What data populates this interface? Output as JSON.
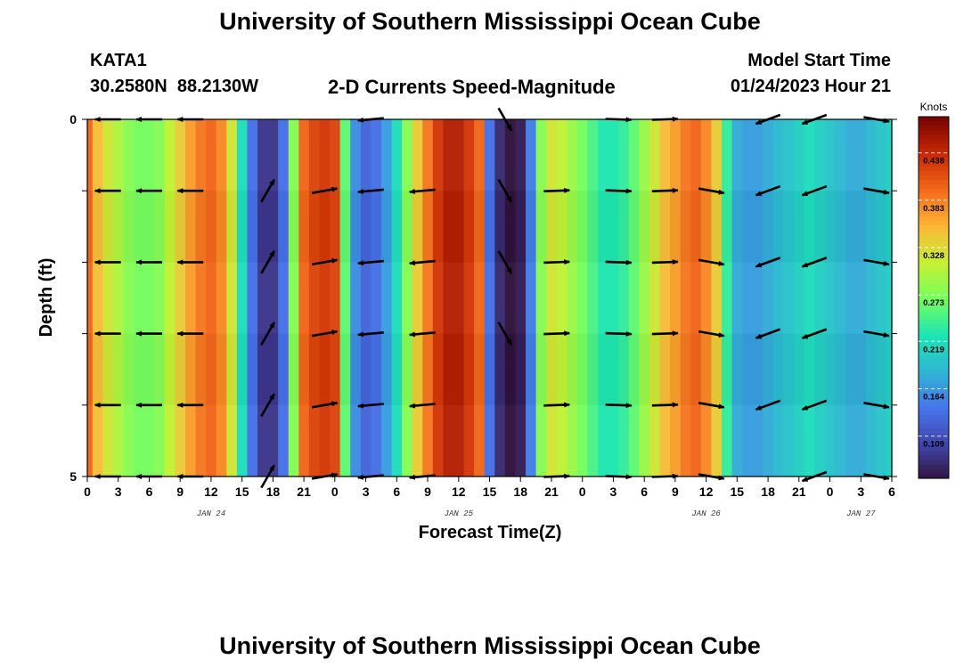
{
  "header": {
    "title": "University of Southern Mississippi Ocean Cube",
    "station": "KATA1",
    "coords": "30.2580N  88.2130W",
    "plot_title": "2-D Currents Speed-Magnitude",
    "model_start_label": "Model Start Time",
    "model_start_value": "01/24/2023 Hour 21"
  },
  "footer": {
    "title": "University of Southern Mississippi Ocean Cube"
  },
  "chart_data": {
    "type": "heatmap",
    "title": "2-D Currents Speed-Magnitude",
    "xlabel": "Forecast Time(Z)",
    "ylabel": "Depth (ft)",
    "x_range_hours": [
      0,
      78
    ],
    "y_range_ft": [
      0,
      5
    ],
    "y_tick_labels": [
      "0",
      "5"
    ],
    "x_tick_labels": [
      "0",
      "3",
      "6",
      "9",
      "12",
      "15",
      "18",
      "21",
      "0",
      "3",
      "6",
      "9",
      "12",
      "15",
      "18",
      "21",
      "0",
      "3",
      "6",
      "9",
      "12",
      "15",
      "18",
      "21",
      "0",
      "3",
      "6"
    ],
    "date_labels": [
      {
        "label": "JAN 24",
        "hour": 12
      },
      {
        "label": "JAN 25",
        "hour": 36
      },
      {
        "label": "JAN 26",
        "hour": 60
      },
      {
        "label": "JAN 27",
        "hour": 75
      }
    ],
    "colorbar": {
      "title": "Knots",
      "min": 0.06,
      "max": 0.48,
      "ticks": [
        "0.438",
        "0.383",
        "0.328",
        "0.273",
        "0.219",
        "0.164",
        "0.109"
      ],
      "tick_values": [
        0.438,
        0.383,
        0.328,
        0.273,
        0.219,
        0.164,
        0.109
      ]
    },
    "speed_profile": {
      "hours": [
        0,
        1,
        2,
        3,
        4,
        5,
        6,
        7,
        8,
        9,
        10,
        11,
        12,
        13,
        14,
        15,
        16,
        17,
        18,
        19,
        20,
        21,
        22,
        23,
        24,
        25,
        26,
        27,
        28,
        29,
        30,
        31,
        32,
        33,
        34,
        35,
        36,
        37,
        38,
        39,
        40,
        41,
        42,
        43,
        44,
        45,
        46,
        47,
        48,
        49,
        50,
        51,
        52,
        53,
        54,
        55,
        56,
        57,
        58,
        59,
        60,
        61,
        62,
        63,
        64,
        65,
        66,
        67,
        68,
        69,
        70,
        71,
        72,
        73,
        74,
        75,
        76,
        77,
        78
      ],
      "values": [
        0.4,
        0.35,
        0.32,
        0.3,
        0.28,
        0.27,
        0.27,
        0.28,
        0.31,
        0.34,
        0.37,
        0.39,
        0.4,
        0.38,
        0.32,
        0.22,
        0.14,
        0.09,
        0.09,
        0.14,
        0.28,
        0.4,
        0.42,
        0.43,
        0.42,
        0.26,
        0.16,
        0.13,
        0.14,
        0.17,
        0.22,
        0.28,
        0.34,
        0.39,
        0.43,
        0.45,
        0.45,
        0.43,
        0.4,
        0.14,
        0.08,
        0.06,
        0.07,
        0.15,
        0.28,
        0.32,
        0.31,
        0.29,
        0.27,
        0.25,
        0.23,
        0.23,
        0.24,
        0.26,
        0.29,
        0.32,
        0.35,
        0.37,
        0.39,
        0.4,
        0.38,
        0.34,
        0.24,
        0.18,
        0.17,
        0.17,
        0.18,
        0.19,
        0.2,
        0.21,
        0.22,
        0.21,
        0.2,
        0.19,
        0.18,
        0.18,
        0.19,
        0.2,
        0.21
      ]
    },
    "vector_depths_ft": [
      0,
      1,
      2,
      3,
      4,
      5
    ],
    "vectors": [
      {
        "hour": 2,
        "dir_deg": 270,
        "rows": [
          0,
          1,
          2,
          3,
          4,
          5
        ]
      },
      {
        "hour": 6,
        "dir_deg": 270,
        "rows": [
          0,
          1,
          2,
          3,
          4,
          5
        ]
      },
      {
        "hour": 10,
        "dir_deg": 270,
        "rows": [
          0,
          1,
          2,
          3,
          4,
          5
        ]
      },
      {
        "hour": 17.5,
        "dir_deg": 30,
        "rows": [
          1,
          2,
          3,
          4,
          5
        ]
      },
      {
        "hour": 23,
        "dir_deg": 80,
        "rows": [
          1,
          2,
          3,
          4,
          5
        ]
      },
      {
        "hour": 27.5,
        "dir_deg": 265,
        "rows": [
          0,
          1,
          2,
          3,
          4,
          5
        ]
      },
      {
        "hour": 32.5,
        "dir_deg": 265,
        "rows": [
          1,
          2,
          3,
          4,
          5
        ]
      },
      {
        "hour": 40.5,
        "dir_deg": 150,
        "rows": [
          0,
          1,
          2,
          3
        ]
      },
      {
        "hour": 45.5,
        "dir_deg": 88,
        "rows": [
          1,
          2,
          3,
          4,
          5
        ]
      },
      {
        "hour": 51.5,
        "dir_deg": 92,
        "rows": [
          0,
          1,
          2,
          3,
          4,
          5
        ]
      },
      {
        "hour": 56,
        "dir_deg": 88,
        "rows": [
          0,
          1,
          2,
          3,
          4,
          5
        ]
      },
      {
        "hour": 60.5,
        "dir_deg": 100,
        "rows": [
          1,
          2,
          3,
          4,
          5
        ]
      },
      {
        "hour": 66,
        "dir_deg": 250,
        "rows": [
          0,
          1,
          2,
          3,
          4
        ]
      },
      {
        "hour": 70.5,
        "dir_deg": 250,
        "rows": [
          0,
          1,
          2,
          3,
          4,
          5
        ]
      },
      {
        "hour": 76.5,
        "dir_deg": 100,
        "rows": [
          0,
          1,
          2,
          3,
          4,
          5
        ]
      }
    ]
  }
}
